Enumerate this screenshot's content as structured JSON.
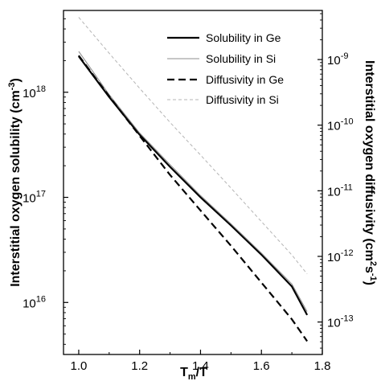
{
  "chart_data": {
    "type": "line",
    "title": "",
    "xlabel": {
      "main": "T",
      "sub": "m",
      "rest": "/T"
    },
    "ylabel_left": {
      "text": "Interstitial oxygen solubility (cm",
      "sup": "-3",
      "close": ")"
    },
    "ylabel_right": {
      "text": "Interstitial oxygen diffusivity (cm",
      "sup": "2",
      "mid": "s",
      "sup2": "-1",
      "close": ")"
    },
    "xlim": [
      0.95,
      1.8
    ],
    "xticks": [
      1.0,
      1.2,
      1.4,
      1.6,
      1.8
    ],
    "xtick_labels": [
      "1.0",
      "1.2",
      "1.4",
      "1.6",
      "1.8"
    ],
    "ylim_left": [
      3200000000000000.0,
      6e+18
    ],
    "yticks_left": [
      {
        "value": 1e+16,
        "base": "10",
        "exp": "16"
      },
      {
        "value": 1e+17,
        "base": "10",
        "exp": "17"
      },
      {
        "value": 1e+18,
        "base": "10",
        "exp": "18"
      }
    ],
    "ylim_right": [
      3.2e-14,
      5.6e-09
    ],
    "yticks_right": [
      {
        "value": 1e-13,
        "base": "10",
        "exp": "-13"
      },
      {
        "value": 1e-12,
        "base": "10",
        "exp": "-12"
      },
      {
        "value": 1e-11,
        "base": "10",
        "exp": "-11"
      },
      {
        "value": 1e-10,
        "base": "10",
        "exp": "-10"
      },
      {
        "value": 1e-09,
        "base": "10",
        "exp": "-9"
      }
    ],
    "y_scale": "log",
    "grid": false,
    "legend_position": "top-right",
    "series": [
      {
        "name": "Solubility in Ge",
        "axis": "left",
        "style": "solid-thick",
        "x": [
          1.0,
          1.1,
          1.2,
          1.3,
          1.4,
          1.5,
          1.6,
          1.7,
          1.75
        ],
        "y": [
          2.2e+18,
          9e+17,
          3.95e+17,
          1.95e+17,
          1e+17,
          5.4e+16,
          2.85e+16,
          1.42e+16,
          7600000000000000.0
        ]
      },
      {
        "name": "Solubility in Si",
        "axis": "left",
        "style": "solid-thin",
        "x": [
          1.0,
          1.1,
          1.2,
          1.3,
          1.4,
          1.5,
          1.6,
          1.7,
          1.75
        ],
        "y": [
          2.45e+18,
          9.5e+17,
          4.1e+17,
          2.05e+17,
          1.04e+17,
          5.6e+16,
          2.95e+16,
          1.5e+16,
          8200000000000000.0
        ]
      },
      {
        "name": "Diffusivity in Ge",
        "axis": "right",
        "style": "dashed-thick",
        "x": [
          1.0,
          1.1,
          1.2,
          1.3,
          1.4,
          1.5,
          1.6,
          1.7,
          1.75
        ],
        "y": [
          1.15e-09,
          2.75e-10,
          6.9e-11,
          1.74e-11,
          5e-12,
          1.45e-12,
          4e-13,
          1.1e-13,
          5.1e-14
        ]
      },
      {
        "name": "Diffusivity in Si",
        "axis": "right",
        "style": "dashed-thin",
        "x": [
          1.0,
          1.1,
          1.2,
          1.3,
          1.4,
          1.5,
          1.6,
          1.7,
          1.75
        ],
        "y": [
          4.4e-09,
          1.25e-09,
          3.65e-10,
          1.1e-10,
          3.5e-11,
          1.1e-11,
          3.4e-12,
          1.05e-12,
          5.4e-13
        ]
      }
    ],
    "colors": {
      "ge_line": "#000000",
      "si_solubility_line": "#8c8c8c",
      "si_diffusivity_line": "#b4b4b4",
      "axes": "#000000"
    }
  }
}
